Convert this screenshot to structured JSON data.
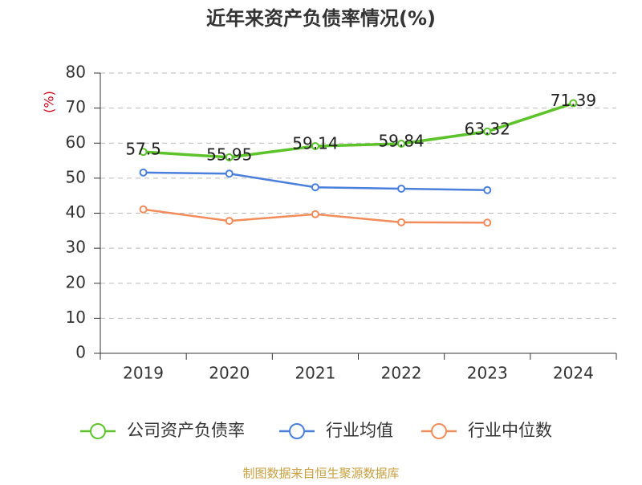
{
  "chart_data": {
    "type": "line",
    "title": "近年来资产负债率情况(%)",
    "y_label": "(%)",
    "categories": [
      "2019",
      "2020",
      "2021",
      "2022",
      "2023",
      "2024"
    ],
    "series": [
      {
        "name": "公司资产负债率",
        "color": "#5cc42a",
        "values": [
          57.5,
          55.95,
          59.14,
          59.84,
          63.32,
          71.39
        ]
      },
      {
        "name": "行业均值",
        "color": "#4a7fdc",
        "values": [
          51.6,
          51.3,
          47.4,
          47.0,
          46.6,
          null
        ]
      },
      {
        "name": "行业中位数",
        "color": "#f28c5a",
        "values": [
          41.1,
          37.8,
          39.7,
          37.4,
          37.3,
          null
        ]
      }
    ],
    "labeled_series": 0,
    "ylim": [
      0,
      80
    ],
    "yticks": [
      0,
      10,
      20,
      30,
      40,
      50,
      60,
      70,
      80
    ],
    "grid": true,
    "source": "制图数据来自恒生聚源数据库"
  }
}
